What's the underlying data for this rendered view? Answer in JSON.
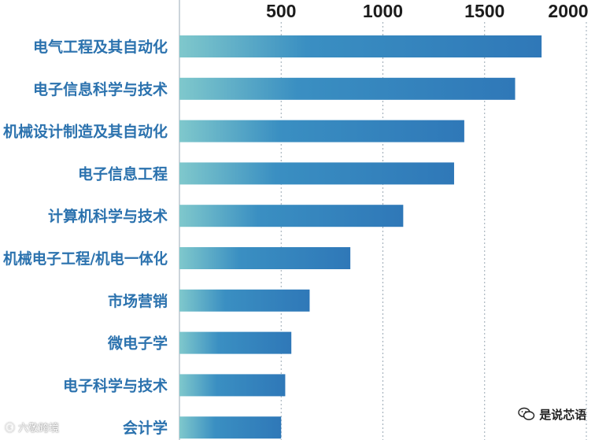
{
  "chart_data": {
    "type": "bar",
    "orientation": "horizontal",
    "categories": [
      "电气工程及其自动化",
      "电子信息科学与技术",
      "机械设计制造及其自动化",
      "电子信息工程",
      "计算机科学与技术",
      "机械电子工程/机电一体化",
      "市场营销",
      "微电子学",
      "电子科学与技术",
      "会计学"
    ],
    "values": [
      1780,
      1650,
      1400,
      1350,
      1100,
      840,
      640,
      550,
      520,
      500
    ],
    "xticks": [
      500,
      1000,
      1500,
      2000
    ],
    "xlim": [
      0,
      2000
    ],
    "title": "",
    "xlabel": "",
    "ylabel": "",
    "grid": "vertical dotted",
    "axis_position": "top",
    "colors": {
      "bar_start": "#7fc8cc",
      "bar_mid": "#3a8fc2",
      "bar_end": "#2f78b8",
      "category_label": "#2b72ae",
      "grid": "#9aa8b4"
    }
  },
  "watermarks": {
    "left": "六敬跨境",
    "right": "是说芯语",
    "left_icon": "logo-icon",
    "right_icon": "wechat-icon"
  }
}
